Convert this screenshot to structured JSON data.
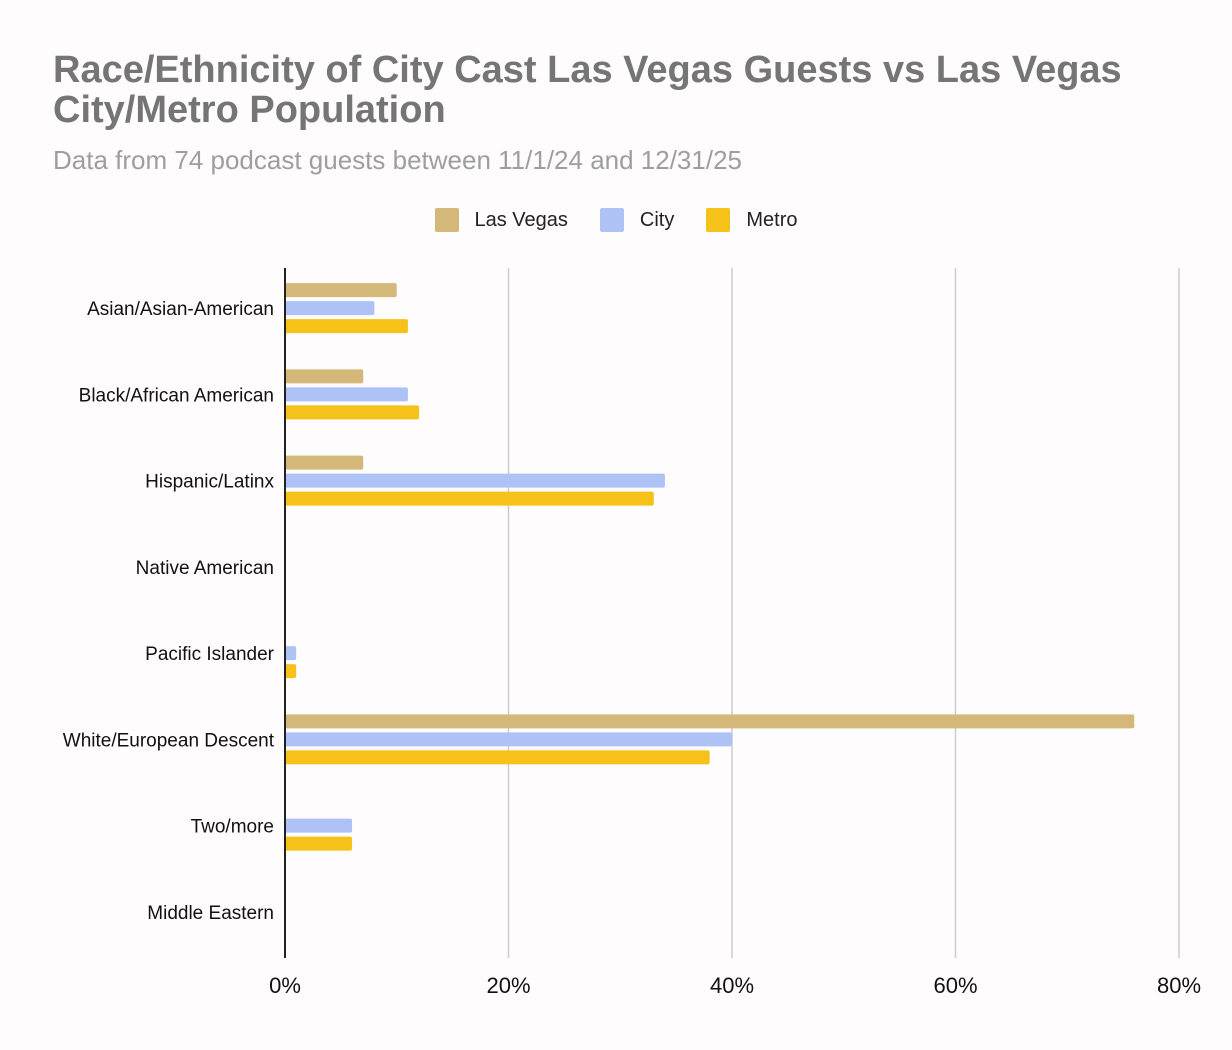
{
  "chart_data": {
    "type": "bar",
    "orientation": "horizontal",
    "title": "Race/Ethnicity of City Cast Las Vegas Guests vs Las Vegas City/Metro Population",
    "subtitle": "Data from 74 podcast guests between 11/1/24 and 12/31/25",
    "categories": [
      "Asian/Asian-American",
      "Black/African American",
      "Hispanic/Latinx",
      "Native American",
      "Pacific Islander",
      "White/European Descent",
      "Two/more",
      "Middle Eastern"
    ],
    "series": [
      {
        "name": "Las Vegas",
        "color": "#d4b87a",
        "values": [
          10,
          7,
          7,
          0,
          0,
          76,
          0,
          0
        ]
      },
      {
        "name": "City",
        "color": "#aec2f5",
        "values": [
          8,
          11,
          34,
          0,
          1,
          40,
          6,
          0
        ]
      },
      {
        "name": "Metro",
        "color": "#f6c21a",
        "values": [
          11,
          12,
          33,
          0,
          1,
          38,
          6,
          0
        ]
      }
    ],
    "xlim": [
      0,
      80
    ],
    "xticks": [
      0,
      20,
      40,
      60,
      80
    ],
    "tick_labels": [
      "0%",
      "20%",
      "40%",
      "60%",
      "80%"
    ],
    "grid": true,
    "legend_position": "top-center"
  }
}
